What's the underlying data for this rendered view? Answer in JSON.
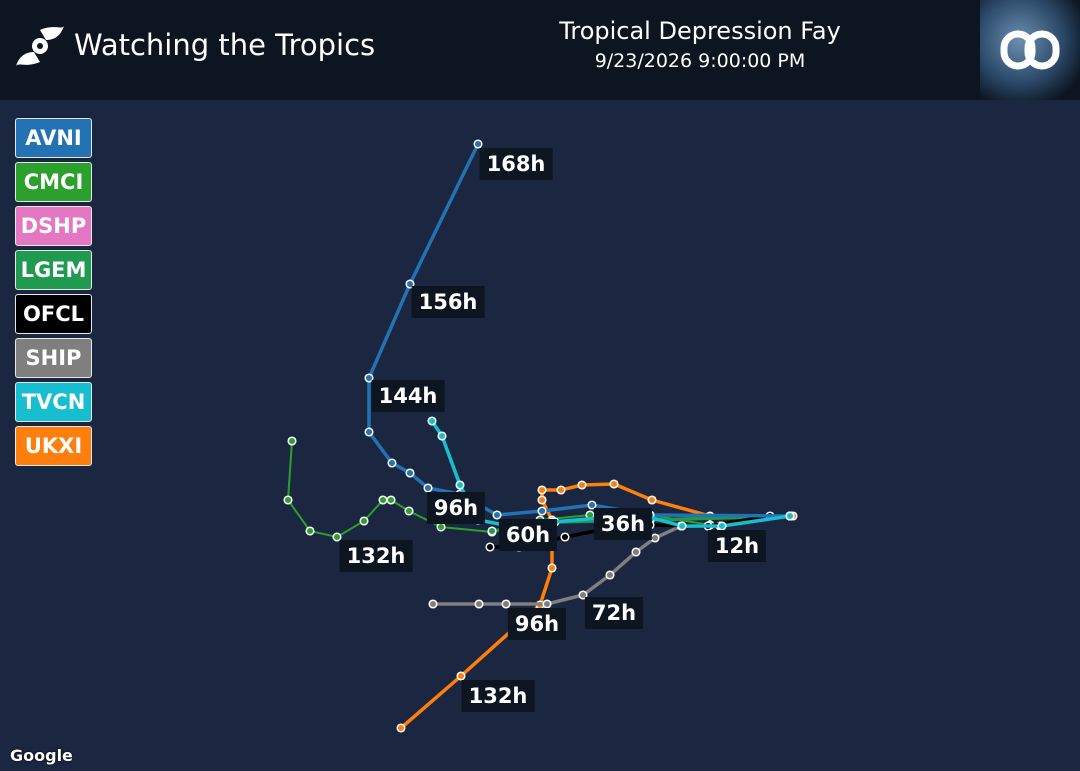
{
  "header": {
    "title": "Watching the Tropics",
    "storm_name": "Tropical Depression Fay",
    "datetime": "9/23/2026 9:00:00 PM"
  },
  "legend": [
    {
      "label": "AVNI",
      "color": "#2272b4"
    },
    {
      "label": "CMCI",
      "color": "#2ca02c"
    },
    {
      "label": "DSHP",
      "color": "#e377c2"
    },
    {
      "label": "LGEM",
      "color": "#1f9a4f"
    },
    {
      "label": "OFCL",
      "color": "#000000"
    },
    {
      "label": "SHIP",
      "color": "#7f7f7f"
    },
    {
      "label": "TVCN",
      "color": "#17becf"
    },
    {
      "label": "UKXI",
      "color": "#ff7f0e"
    }
  ],
  "track_labels": [
    "168h",
    "156h",
    "144h",
    "96h",
    "60h",
    "36h",
    "12h",
    "132h",
    "96h",
    "72h",
    "132h"
  ],
  "map_attribution": "Google"
}
